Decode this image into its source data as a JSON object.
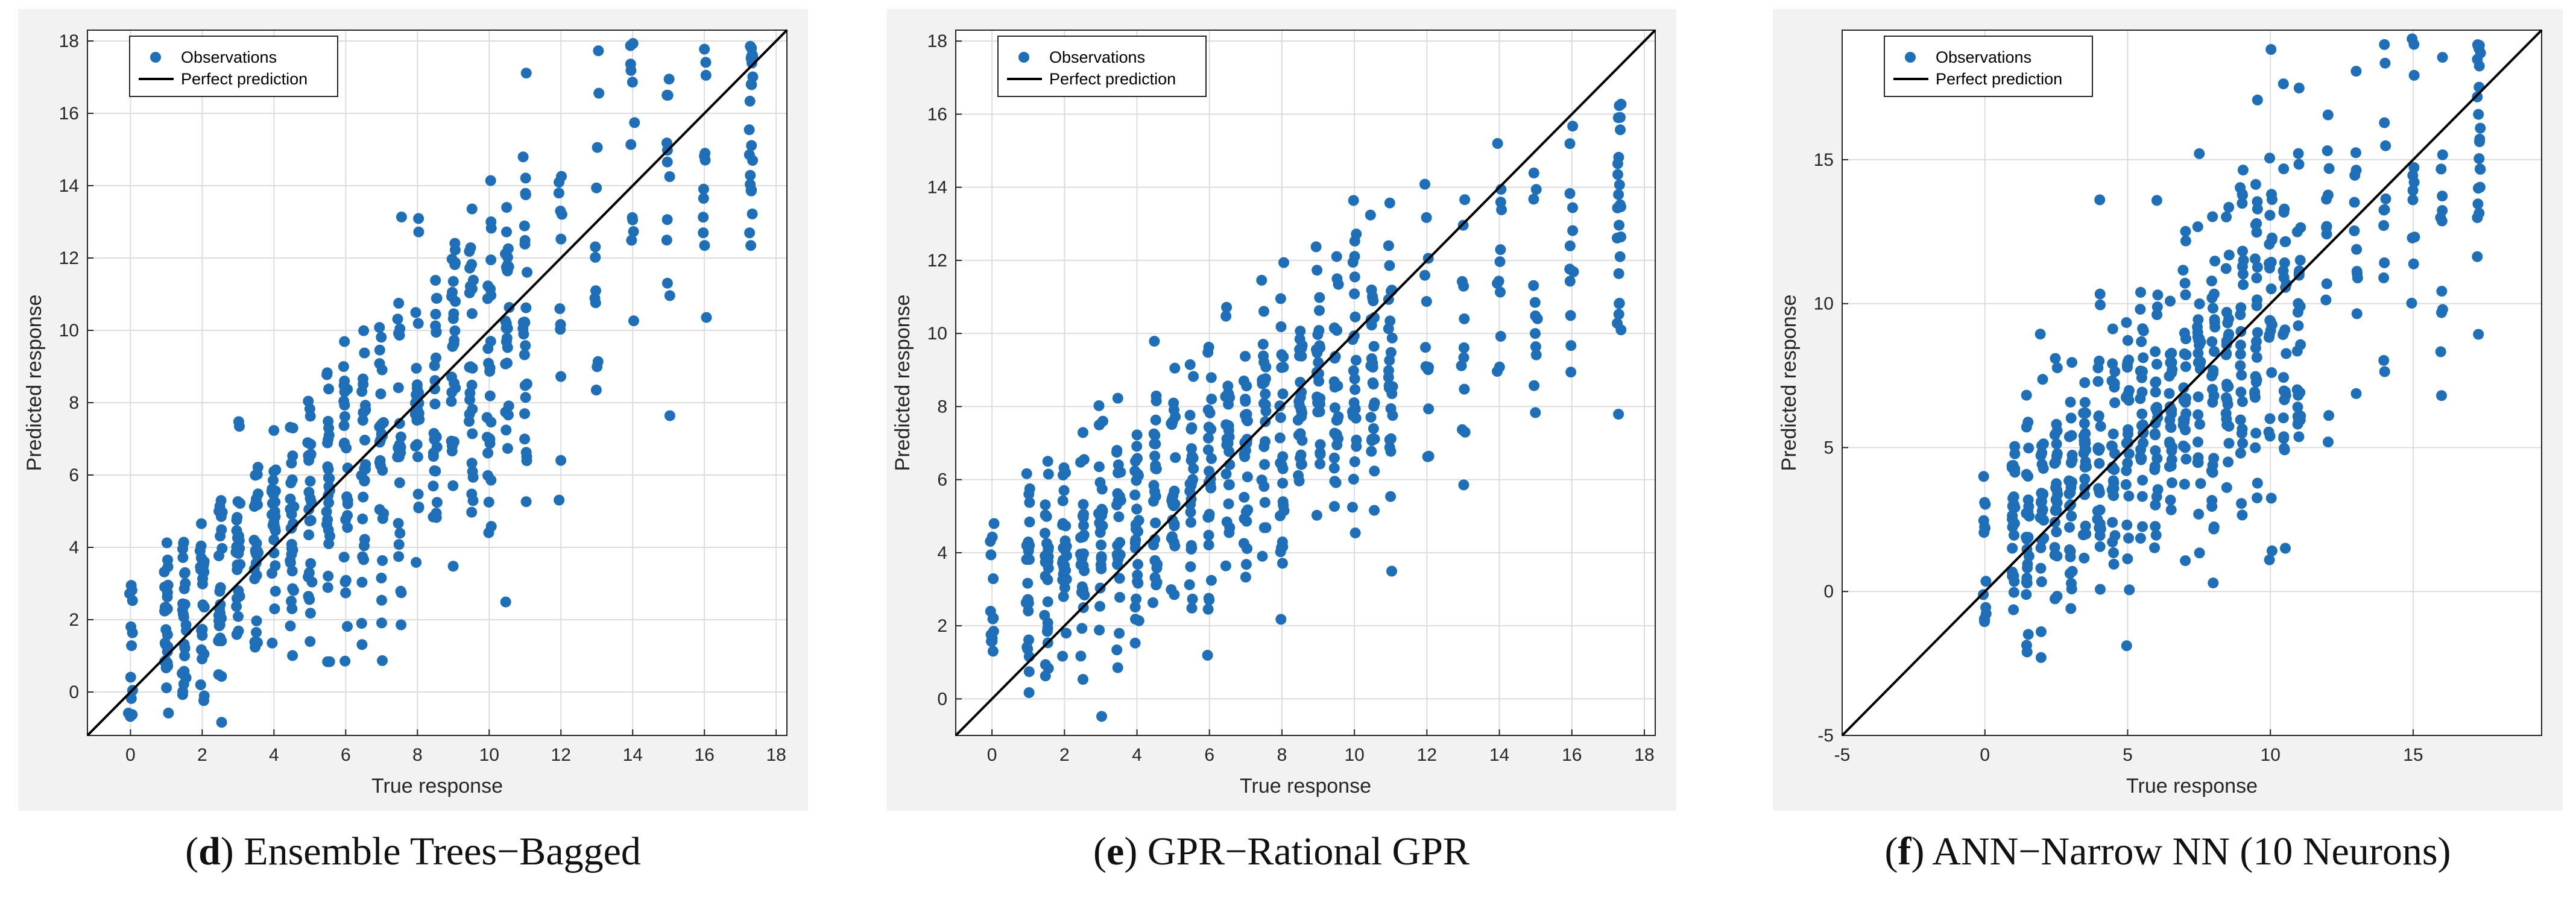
{
  "figure": {
    "panels": [
      {
        "id": "d",
        "caption_letter": "d",
        "caption_text": " Ensemble Trees−Bagged",
        "caption_open": "(",
        "caption_close": ")"
      },
      {
        "id": "e",
        "caption_letter": "e",
        "caption_text": " GPR−Rational GPR",
        "caption_open": "(",
        "caption_close": ")"
      },
      {
        "id": "f",
        "caption_letter": "f",
        "caption_text": " ANN−Narrow NN (10 Neurons)",
        "caption_open": "(",
        "caption_close": ")"
      }
    ],
    "colors": {
      "points": "#1f6fb8",
      "line": "#000000",
      "grid": "#dcdcdc",
      "axes_bg": "#ffffff"
    }
  },
  "chart_data": [
    {
      "type": "scatter",
      "panel": "d",
      "xlabel": "True response",
      "ylabel": "Predicted response",
      "xlim": [
        -1.2,
        18.3
      ],
      "ylim": [
        -1.2,
        18.3
      ],
      "xticks": [
        0,
        2,
        4,
        6,
        8,
        10,
        12,
        14,
        16,
        18
      ],
      "yticks": [
        0,
        2,
        4,
        6,
        8,
        10,
        12,
        14,
        16,
        18
      ],
      "legend": {
        "position": "top-left",
        "entries": [
          "Observations",
          "Perfect prediction"
        ]
      },
      "grid": true,
      "series": [
        {
          "name": "Observations",
          "kind": "points",
          "model": {
            "slope": 0.84,
            "intercept": 1.0,
            "spread": 1.7
          }
        },
        {
          "name": "Perfect prediction",
          "kind": "line",
          "points": [
            [
              -1.2,
              -1.2
            ],
            [
              18.3,
              18.3
            ]
          ]
        }
      ]
    },
    {
      "type": "scatter",
      "panel": "e",
      "xlabel": "True response",
      "ylabel": "Predicted response",
      "xlim": [
        -1.0,
        18.3
      ],
      "ylim": [
        -1.0,
        18.3
      ],
      "xticks": [
        0,
        2,
        4,
        6,
        8,
        10,
        12,
        14,
        16,
        18
      ],
      "yticks": [
        0,
        2,
        4,
        6,
        8,
        10,
        12,
        14,
        16,
        18
      ],
      "legend": {
        "position": "top-left",
        "entries": [
          "Observations",
          "Perfect prediction"
        ]
      },
      "grid": true,
      "series": [
        {
          "name": "Observations",
          "kind": "points",
          "model": {
            "slope": 0.6,
            "intercept": 2.6,
            "spread": 1.5
          }
        },
        {
          "name": "Perfect prediction",
          "kind": "line",
          "points": [
            [
              -1.0,
              -1.0
            ],
            [
              18.3,
              18.3
            ]
          ]
        }
      ]
    },
    {
      "type": "scatter",
      "panel": "f",
      "xlabel": "True response",
      "ylabel": "Predicted response",
      "xlim": [
        -5,
        19.5
      ],
      "ylim": [
        -5,
        19.5
      ],
      "xticks": [
        -5,
        0,
        5,
        10,
        15
      ],
      "yticks": [
        -5,
        0,
        5,
        10,
        15
      ],
      "legend": {
        "position": "top-left",
        "entries": [
          "Observations",
          "Perfect prediction"
        ]
      },
      "grid": true,
      "series": [
        {
          "name": "Observations",
          "kind": "points",
          "model": {
            "slope": 0.82,
            "intercept": 1.2,
            "spread": 2.4
          }
        },
        {
          "name": "Perfect prediction",
          "kind": "line",
          "points": [
            [
              -5,
              -5
            ],
            [
              19.5,
              19.5
            ]
          ]
        }
      ]
    }
  ]
}
